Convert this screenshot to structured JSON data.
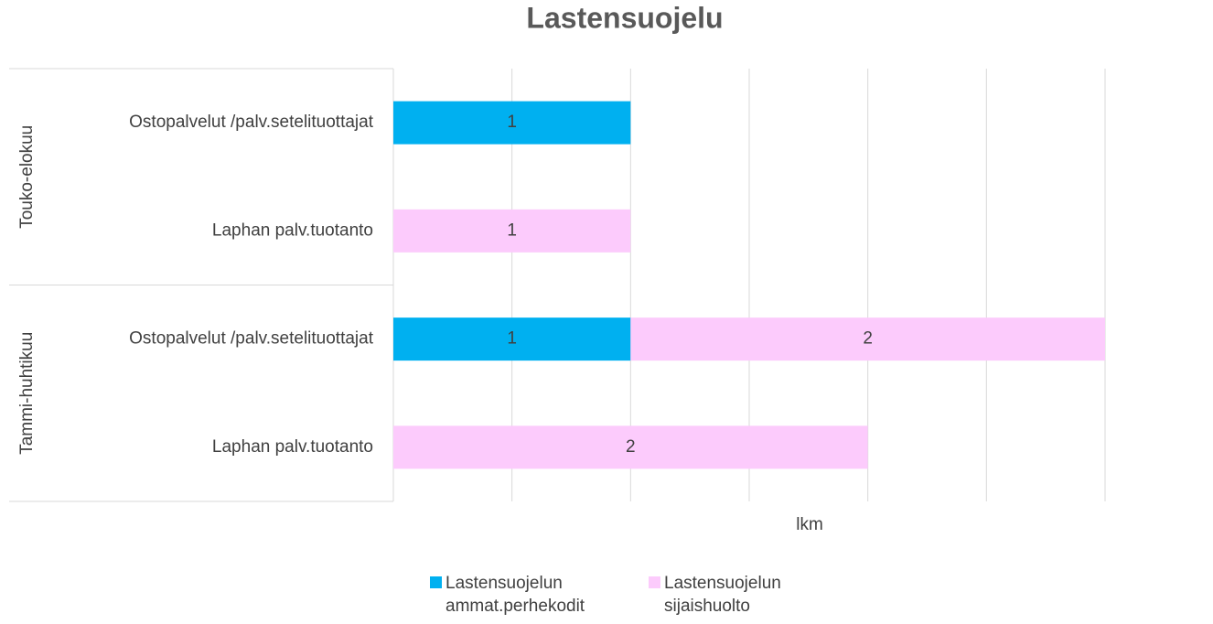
{
  "chart_data": {
    "type": "stacked-bar-horizontal",
    "title": "Lastensuojelu",
    "groups": [
      {
        "name": "Touko-elokuu",
        "categories": [
          "Ostopalvelut /palv.setelituottajat",
          "Laphan palv.tuotanto"
        ]
      },
      {
        "name": "Tammi-huhtikuu",
        "categories": [
          "Ostopalvelut /palv.setelituottajat",
          "Laphan palv.tuotanto"
        ]
      }
    ],
    "series": [
      {
        "name": "Lastensuojelun ammat.perhekodit",
        "color": "#00b0f0",
        "values": [
          1,
          null,
          1,
          null
        ]
      },
      {
        "name": "Lastensuojelun sijaishuolto",
        "color": "#fccbfc",
        "values": [
          null,
          1,
          2,
          2
        ]
      }
    ],
    "x_axis_label": "lkm",
    "xlim": [
      0,
      3
    ],
    "xticks": [
      0,
      0.5,
      1,
      1.5,
      2,
      2.5,
      3
    ],
    "grid": true,
    "legend": "bottom"
  }
}
